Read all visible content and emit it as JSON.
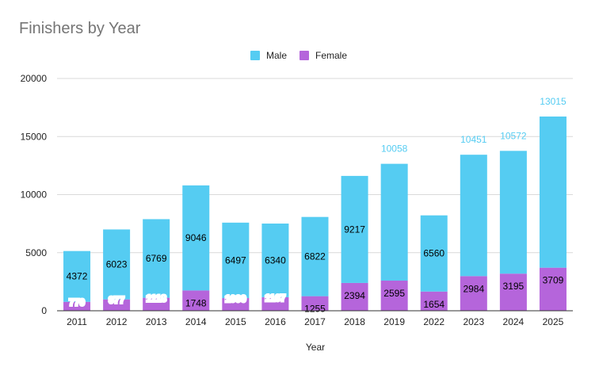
{
  "colors": {
    "male": "#55ccf2",
    "female": "#b565db",
    "grid": "#d9d9d9",
    "axis": "#333333",
    "total_label": "#55ccf2"
  },
  "chart_data": {
    "type": "bar",
    "stacked": true,
    "title": "Finishers by Year",
    "xlabel": "Year",
    "ylabel": "",
    "ylim": [
      0,
      20000
    ],
    "yticks": [
      "0",
      "5000",
      "10000",
      "15000",
      "20000"
    ],
    "categories": [
      "2011",
      "2012",
      "2013",
      "2014",
      "2015",
      "2016",
      "2017",
      "2018",
      "2019",
      "2022",
      "2023",
      "2024",
      "2025"
    ],
    "series": [
      {
        "name": "Female",
        "color": "#b565db",
        "values": [
          770,
          977,
          1118,
          1748,
          1090,
          1167,
          1255,
          2394,
          2595,
          1654,
          2984,
          3195,
          3709
        ]
      },
      {
        "name": "Male",
        "color": "#55ccf2",
        "values": [
          4372,
          6023,
          6769,
          9046,
          6497,
          6340,
          6822,
          9217,
          10058,
          6560,
          10451,
          10572,
          13015
        ]
      }
    ],
    "legend": {
      "position": "top-center",
      "entries": [
        "Male",
        "Female"
      ]
    },
    "grid": true
  }
}
